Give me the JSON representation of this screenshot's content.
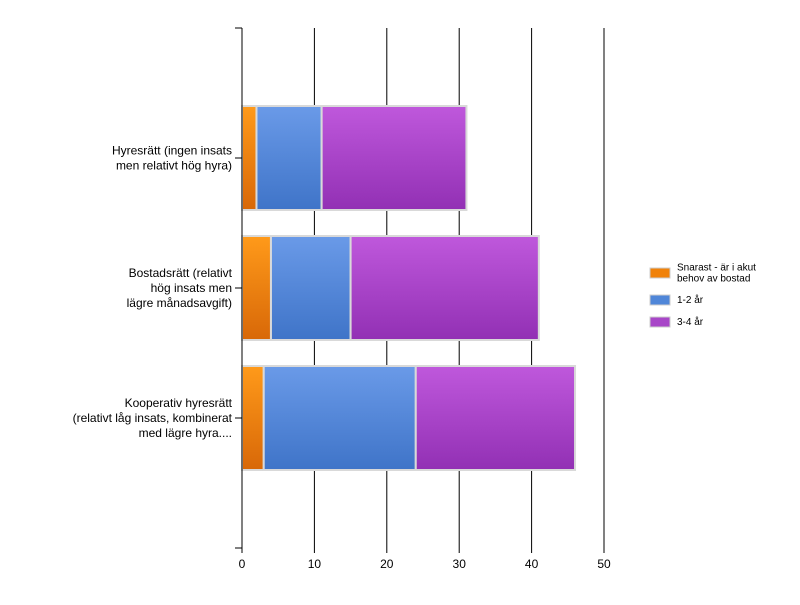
{
  "chart_data": {
    "type": "bar",
    "orientation": "horizontal",
    "stacked": true,
    "categories": [
      [
        "Hyresrätt (ingen insats",
        "men relativt hög hyra)"
      ],
      [
        "Bostadsrätt (relativt",
        "hög insats men",
        "lägre månadsavgift)"
      ],
      [
        "Kooperativ hyresrätt",
        "(relativt låg insats, kombinerat",
        "med lägre hyra...."
      ]
    ],
    "series": [
      {
        "name": "Snarast - är i akut behov av bostad",
        "legend_lines": [
          "Snarast - är i akut",
          "behov av bostad"
        ],
        "color": "#f0820a",
        "values": [
          2,
          4,
          3
        ]
      },
      {
        "name": "1-2 år",
        "legend_lines": [
          "1-2 år"
        ],
        "color": "#4f86d8",
        "values": [
          9,
          11,
          21
        ]
      },
      {
        "name": "3-4 år",
        "legend_lines": [
          "3-4 år"
        ],
        "color": "#a846c8",
        "values": [
          20,
          26,
          22
        ]
      }
    ],
    "xlim": [
      0,
      50
    ],
    "x_ticks": [
      0,
      10,
      20,
      30,
      40,
      50
    ],
    "grid": true,
    "legend_position": "right",
    "title": "",
    "xlabel": "",
    "ylabel": ""
  }
}
